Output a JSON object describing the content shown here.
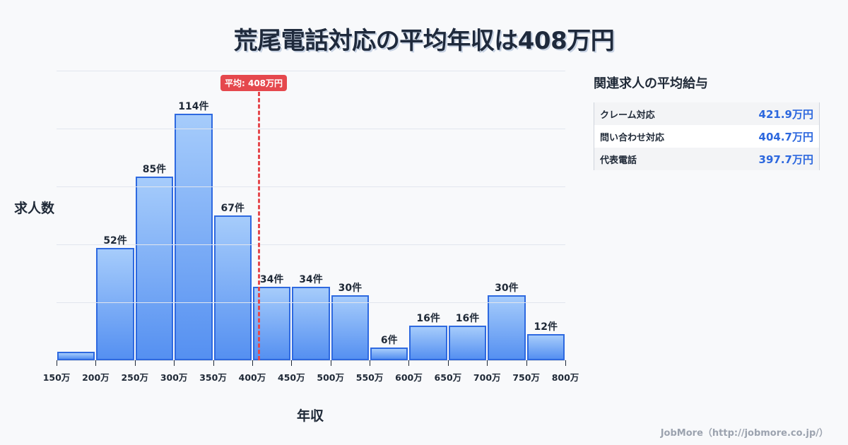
{
  "header": {
    "title": "荒尾電話対応の平均年収は408万円"
  },
  "chart_data": {
    "type": "bar",
    "title": "荒尾電話対応の平均年収は408万円",
    "xlabel": "年収",
    "ylabel": "求人数",
    "categories": [
      "150-200万",
      "200-250万",
      "250-300万",
      "300-350万",
      "350-400万",
      "400-450万",
      "450-500万",
      "500-550万",
      "550-600万",
      "600-650万",
      "650-700万",
      "700-750万",
      "750-800万"
    ],
    "values": [
      4,
      52,
      85,
      114,
      67,
      34,
      34,
      30,
      6,
      16,
      16,
      30,
      12
    ],
    "labels": [
      "",
      "52件",
      "85件",
      "114件",
      "67件",
      "34件",
      "34件",
      "30件",
      "6件",
      "16件",
      "16件",
      "30件",
      "12件"
    ],
    "x_ticks": [
      "150万",
      "200万",
      "250万",
      "300万",
      "350万",
      "400万",
      "450万",
      "500万",
      "550万",
      "600万",
      "650万",
      "700万",
      "750万",
      "800万"
    ],
    "xlim": [
      150,
      800
    ],
    "ylim": [
      0,
      134
    ],
    "grid": true,
    "average": {
      "value": 408,
      "label": "平均: 408万円",
      "color": "#e5484d"
    },
    "bar_color_top": "#a6ccfb",
    "bar_color_bottom": "#5590f1",
    "bar_border": "#2e69e0"
  },
  "sidebar": {
    "title": "関連求人の平均給与",
    "rows": [
      {
        "name": "クレーム対応",
        "value": "421.9万円"
      },
      {
        "name": "問い合わせ対応",
        "value": "404.7万円"
      },
      {
        "name": "代表電話",
        "value": "397.7万円"
      }
    ]
  },
  "footer": {
    "credit": "JobMore（http://jobmore.co.jp/）"
  }
}
